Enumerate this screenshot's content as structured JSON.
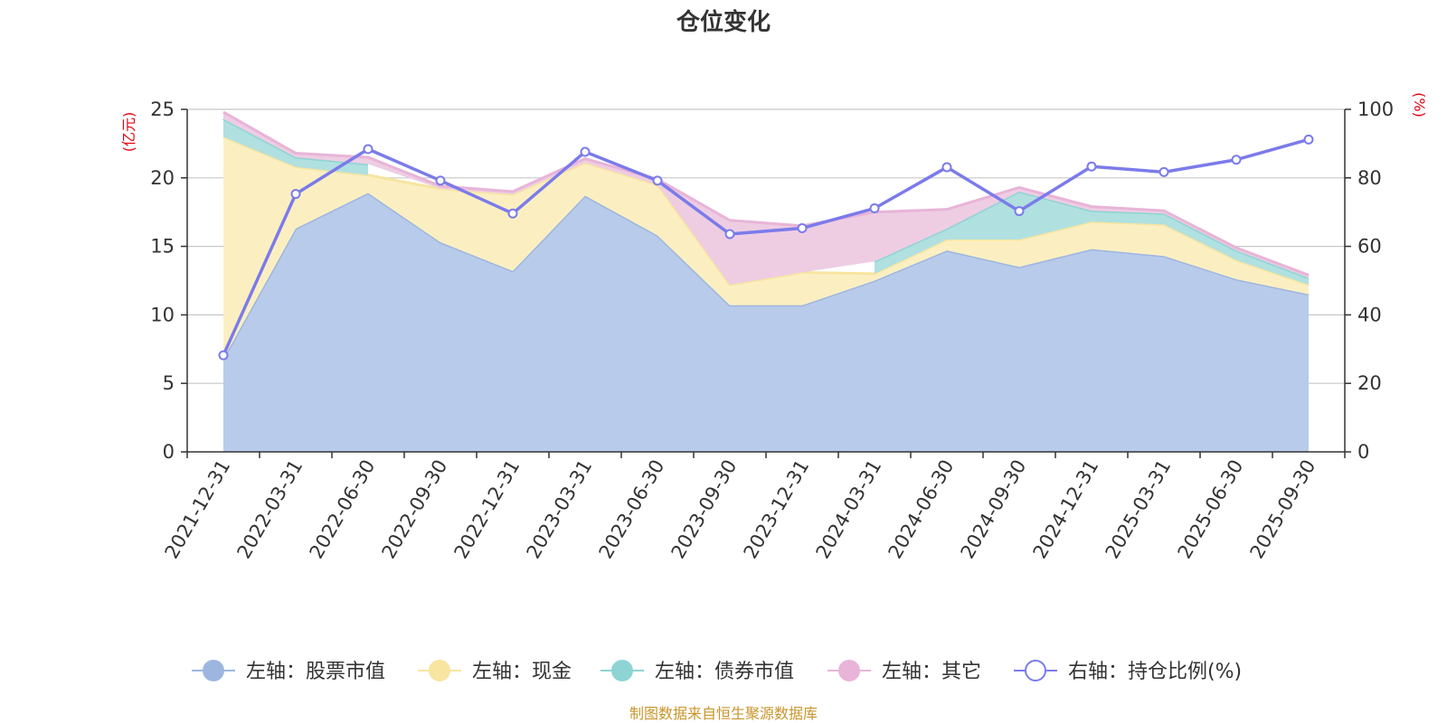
{
  "chart_data": {
    "type": "area",
    "title": "仓位变化",
    "categories": [
      "2021-12-31",
      "2022-03-31",
      "2022-06-30",
      "2022-09-30",
      "2022-12-31",
      "2023-03-31",
      "2023-06-30",
      "2023-09-30",
      "2023-12-31",
      "2024-03-31",
      "2024-06-30",
      "2024-09-30",
      "2024-12-31",
      "2025-03-31",
      "2025-06-30",
      "2025-09-30"
    ],
    "left_axis": {
      "unit": "(亿元)",
      "ylim": [
        0,
        25
      ],
      "ticks": [
        0,
        5,
        10,
        15,
        20,
        25
      ]
    },
    "right_axis": {
      "unit": "(%)",
      "ylim": [
        0,
        100
      ],
      "ticks": [
        0,
        20,
        40,
        60,
        80,
        100
      ]
    },
    "stacked_series": [
      {
        "name": "左轴：股票市值",
        "color": "#9db6e0",
        "fill": "#b8cbea",
        "values": [
          6.8,
          16.3,
          18.9,
          15.3,
          13.2,
          18.7,
          15.8,
          10.7,
          10.7,
          12.5,
          14.7,
          13.5,
          14.8,
          14.3,
          12.6,
          11.5
        ]
      },
      {
        "name": "左轴：现金",
        "color": "#f7e5a0",
        "fill": "#fbefc2",
        "values": [
          16.2,
          4.5,
          1.3,
          3.9,
          5.6,
          2.4,
          3.7,
          1.5,
          2.4,
          0.5,
          0.8,
          2.0,
          2.0,
          2.3,
          1.4,
          0.7
        ]
      },
      {
        "name": "左轴：债券市值",
        "color": "#8ed4d4",
        "fill": "#b0e0e0",
        "values": [
          1.3,
          0.7,
          0.8,
          0,
          0,
          0,
          0,
          0,
          0,
          0.9,
          0.8,
          3.5,
          0.8,
          0.8,
          0.7,
          0.5
        ]
      },
      {
        "name": "左轴：其它",
        "color": "#e8b4d8",
        "fill": "#eecde3",
        "values": [
          0.5,
          0.3,
          0.5,
          0.2,
          0.2,
          0.3,
          0.4,
          4.7,
          3.4,
          3.6,
          1.4,
          0.3,
          0.3,
          0.2,
          0.2,
          0.2
        ]
      }
    ],
    "line_series": {
      "name": "右轴：持仓比例(%)",
      "color": "#7b7bea",
      "axis": "right",
      "values": [
        28.2,
        75.3,
        88.4,
        79.2,
        69.6,
        87.6,
        79.2,
        63.6,
        65.3,
        71.1,
        83.1,
        70.3,
        83.3,
        81.7,
        85.3,
        91.2
      ]
    },
    "grid": true,
    "legend_position": "bottom"
  },
  "source_text": "制图数据来自恒生聚源数据库"
}
